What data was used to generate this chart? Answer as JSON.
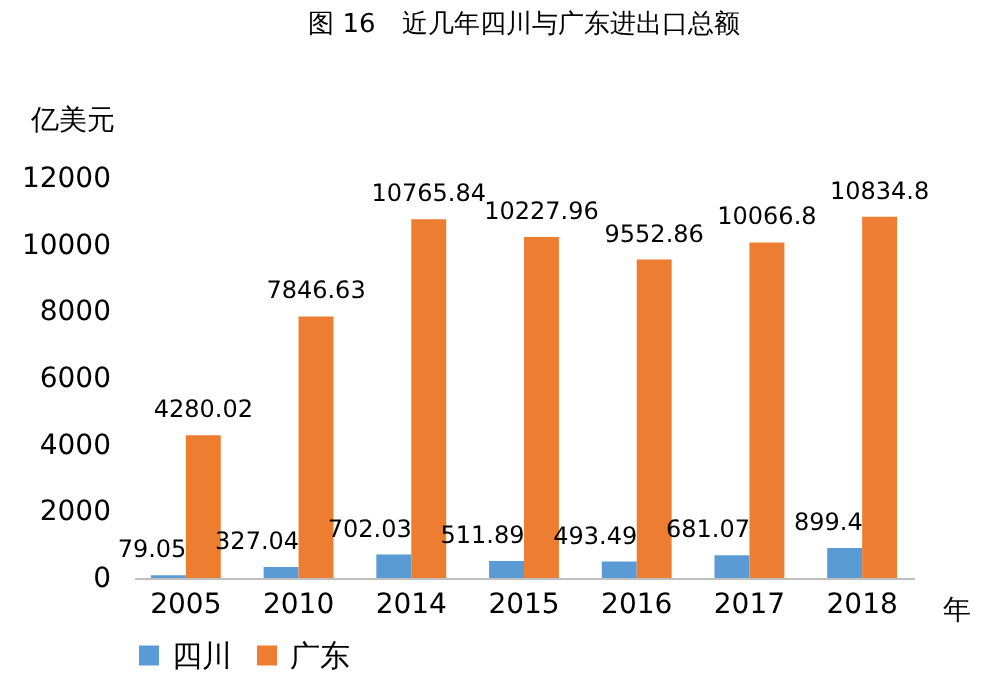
{
  "chart_data": {
    "type": "bar",
    "title": "图 16　近几年四川与广东进出口总额",
    "ylabel": "亿美元",
    "xlabel": "年",
    "categories": [
      "2005",
      "2010",
      "2014",
      "2015",
      "2016",
      "2017",
      "2018"
    ],
    "series": [
      {
        "name": "四川",
        "color": "#5b9bd5",
        "values": [
          79.05,
          327.04,
          702.03,
          511.89,
          493.49,
          681.07,
          899.4
        ]
      },
      {
        "name": "广东",
        "color": "#ed7d31",
        "values": [
          4280.02,
          7846.63,
          10765.84,
          10227.96,
          9552.86,
          10066.8,
          10834.8
        ]
      }
    ],
    "ylim": [
      0,
      12000
    ],
    "yticks": [
      0,
      2000,
      4000,
      6000,
      8000,
      10000,
      12000
    ],
    "grid": false,
    "legend": "bottom",
    "data_labels": true
  }
}
